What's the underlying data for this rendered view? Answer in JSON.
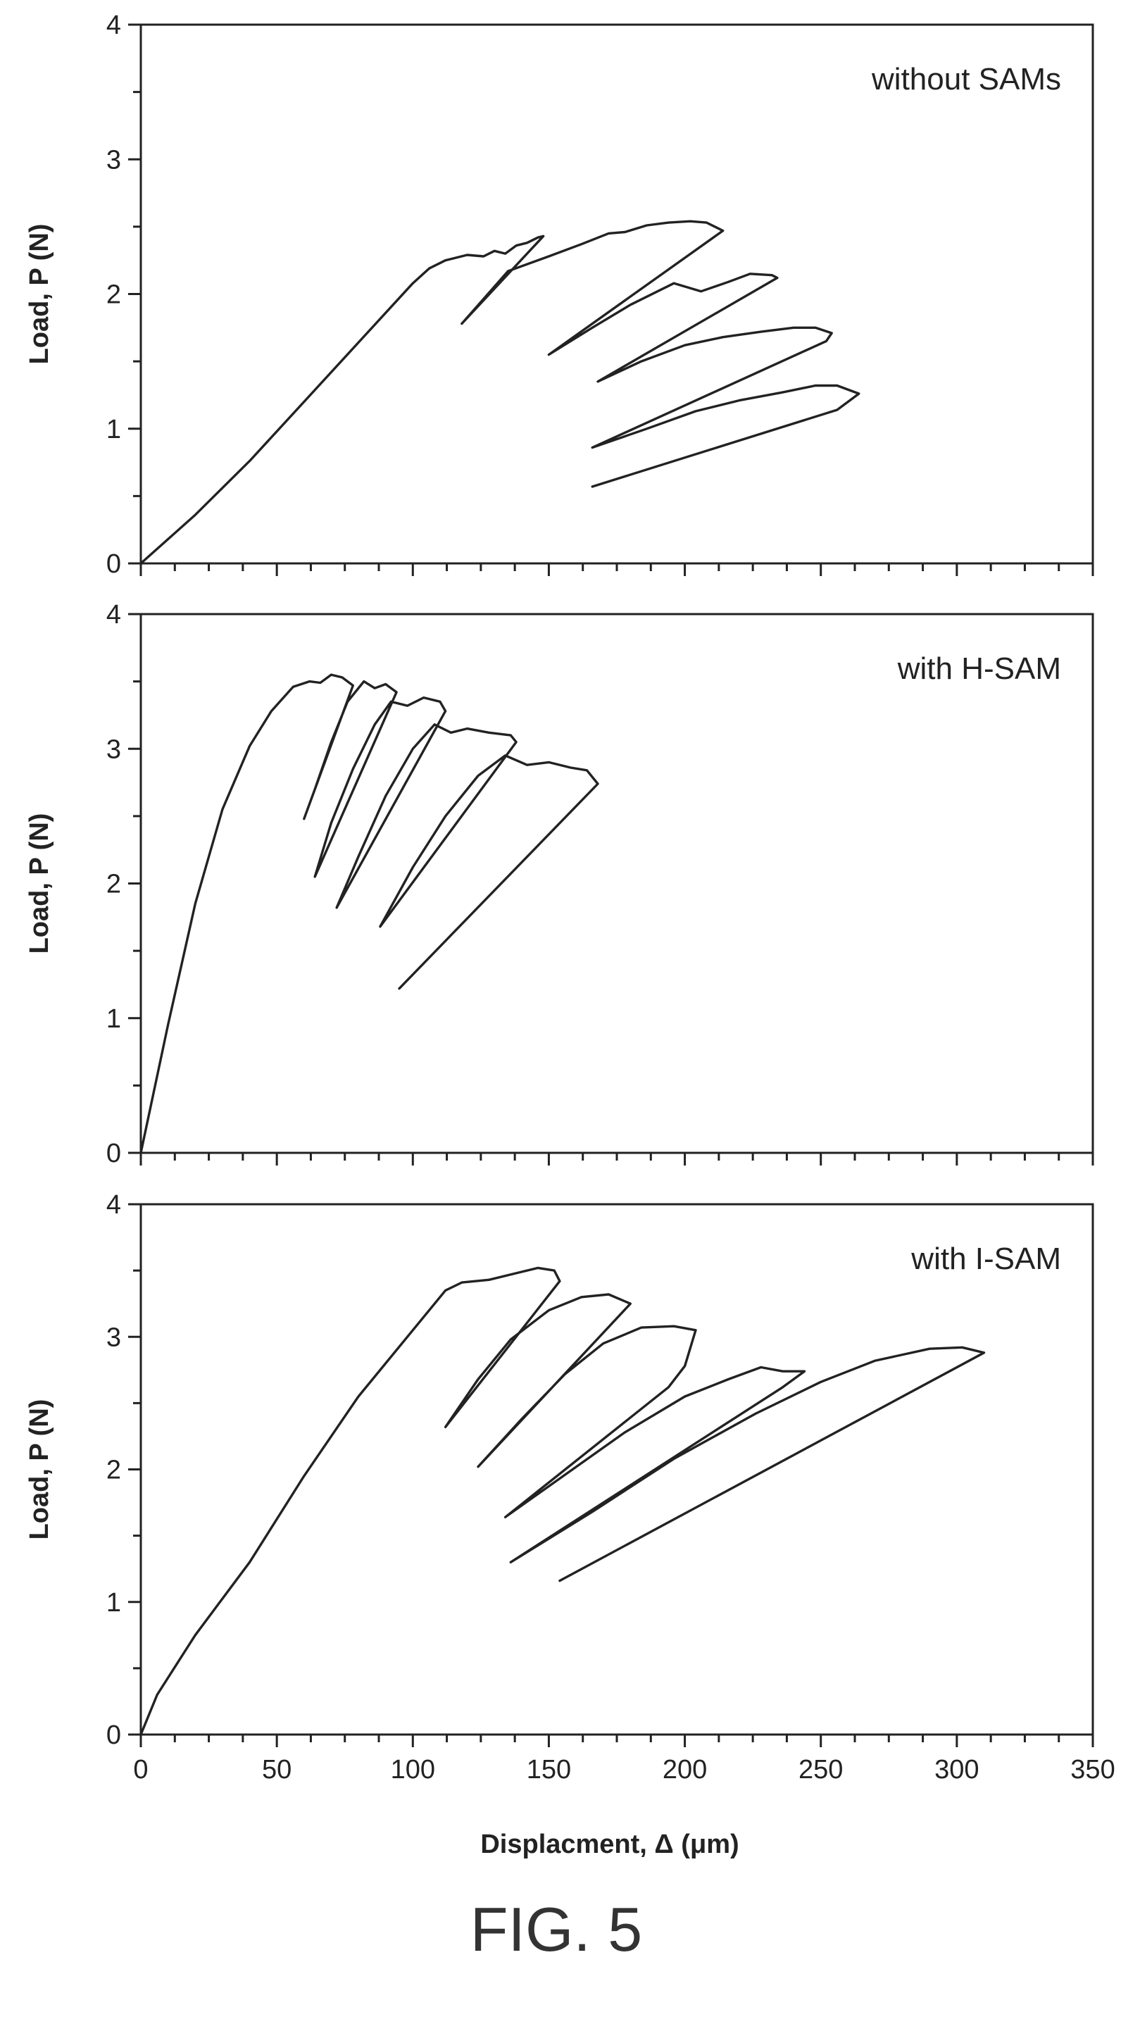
{
  "figure_caption": "FIG. 5",
  "chart_data": [
    {
      "type": "line",
      "title": "",
      "annotation": "without SAMs",
      "xlabel": "",
      "ylabel": "Load, P (N)",
      "xlim": [
        0,
        350
      ],
      "ylim": [
        0,
        4
      ],
      "xticks": [
        0,
        50,
        100,
        150,
        200,
        250,
        300,
        350
      ],
      "yticks": [
        0,
        1,
        2,
        3,
        4
      ],
      "xtick_labels": [],
      "ytick_labels": [
        "0",
        "1",
        "2",
        "3",
        "4"
      ],
      "x_minor_step": 12.5,
      "y_minor_step": 0.5,
      "series": [
        {
          "values": [
            [
              0,
              0
            ],
            [
              20,
              0.36
            ],
            [
              40,
              0.76
            ],
            [
              60,
              1.2
            ],
            [
              80,
              1.64
            ],
            [
              100,
              2.08
            ],
            [
              106,
              2.19
            ],
            [
              112,
              2.25
            ],
            [
              120,
              2.29
            ],
            [
              126,
              2.28
            ],
            [
              130,
              2.32
            ],
            [
              134,
              2.3
            ],
            [
              138,
              2.36
            ],
            [
              142,
              2.38
            ],
            [
              146,
              2.42
            ],
            [
              148,
              2.43
            ],
            [
              118,
              1.78
            ],
            [
              135,
              2.17
            ],
            [
              150,
              2.28
            ],
            [
              162,
              2.37
            ],
            [
              172,
              2.45
            ],
            [
              178,
              2.46
            ],
            [
              186,
              2.51
            ],
            [
              194,
              2.53
            ],
            [
              202,
              2.54
            ],
            [
              208,
              2.53
            ],
            [
              214,
              2.47
            ],
            [
              150,
              1.55
            ],
            [
              166,
              1.75
            ],
            [
              180,
              1.92
            ],
            [
              196,
              2.08
            ],
            [
              206,
              2.02
            ],
            [
              216,
              2.09
            ],
            [
              224,
              2.15
            ],
            [
              232,
              2.14
            ],
            [
              234,
              2.12
            ],
            [
              168,
              1.35
            ],
            [
              184,
              1.5
            ],
            [
              200,
              1.62
            ],
            [
              214,
              1.68
            ],
            [
              228,
              1.72
            ],
            [
              240,
              1.75
            ],
            [
              248,
              1.75
            ],
            [
              254,
              1.71
            ],
            [
              252,
              1.65
            ],
            [
              166,
              0.86
            ],
            [
              186,
              1.0
            ],
            [
              204,
              1.13
            ],
            [
              220,
              1.21
            ],
            [
              236,
              1.27
            ],
            [
              248,
              1.32
            ],
            [
              256,
              1.32
            ],
            [
              264,
              1.26
            ],
            [
              256,
              1.14
            ],
            [
              166,
              0.57
            ]
          ]
        }
      ]
    },
    {
      "type": "line",
      "title": "",
      "annotation": "with H-SAM",
      "xlabel": "",
      "ylabel": "Load, P (N)",
      "xlim": [
        0,
        350
      ],
      "ylim": [
        0,
        4
      ],
      "xticks": [
        0,
        50,
        100,
        150,
        200,
        250,
        300,
        350
      ],
      "yticks": [
        0,
        1,
        2,
        3,
        4
      ],
      "xtick_labels": [],
      "ytick_labels": [
        "0",
        "1",
        "2",
        "3",
        "4"
      ],
      "x_minor_step": 12.5,
      "y_minor_step": 0.5,
      "series": [
        {
          "values": [
            [
              0,
              0
            ],
            [
              10,
              0.95
            ],
            [
              20,
              1.85
            ],
            [
              30,
              2.55
            ],
            [
              40,
              3.02
            ],
            [
              48,
              3.28
            ],
            [
              56,
              3.46
            ],
            [
              62,
              3.5
            ],
            [
              66,
              3.49
            ],
            [
              70,
              3.55
            ],
            [
              74,
              3.53
            ],
            [
              78,
              3.47
            ],
            [
              60,
              2.48
            ],
            [
              64,
              2.7
            ],
            [
              70,
              3.05
            ],
            [
              76,
              3.35
            ],
            [
              82,
              3.5
            ],
            [
              86,
              3.45
            ],
            [
              90,
              3.48
            ],
            [
              94,
              3.42
            ],
            [
              64,
              2.05
            ],
            [
              70,
              2.45
            ],
            [
              78,
              2.85
            ],
            [
              86,
              3.18
            ],
            [
              92,
              3.35
            ],
            [
              98,
              3.32
            ],
            [
              104,
              3.38
            ],
            [
              110,
              3.35
            ],
            [
              112,
              3.28
            ],
            [
              72,
              1.82
            ],
            [
              80,
              2.2
            ],
            [
              90,
              2.65
            ],
            [
              100,
              3.0
            ],
            [
              108,
              3.18
            ],
            [
              114,
              3.12
            ],
            [
              120,
              3.15
            ],
            [
              128,
              3.12
            ],
            [
              136,
              3.1
            ],
            [
              138,
              3.05
            ],
            [
              88,
              1.68
            ],
            [
              100,
              2.12
            ],
            [
              112,
              2.5
            ],
            [
              124,
              2.8
            ],
            [
              134,
              2.95
            ],
            [
              142,
              2.88
            ],
            [
              150,
              2.9
            ],
            [
              158,
              2.86
            ],
            [
              164,
              2.84
            ],
            [
              168,
              2.74
            ],
            [
              95,
              1.22
            ]
          ]
        }
      ]
    },
    {
      "type": "line",
      "title": "",
      "annotation": "with I-SAM",
      "xlabel": "Displacment, Δ (μm)",
      "ylabel": "Load, P (N)",
      "xlim": [
        0,
        350
      ],
      "ylim": [
        0,
        4
      ],
      "xticks": [
        0,
        50,
        100,
        150,
        200,
        250,
        300,
        350
      ],
      "yticks": [
        0,
        1,
        2,
        3,
        4
      ],
      "xtick_labels": [
        "0",
        "50",
        "100",
        "150",
        "200",
        "250",
        "300",
        "350"
      ],
      "ytick_labels": [
        "0",
        "1",
        "2",
        "3",
        "4"
      ],
      "x_minor_step": 12.5,
      "y_minor_step": 0.5,
      "series": [
        {
          "values": [
            [
              0,
              0
            ],
            [
              6,
              0.3
            ],
            [
              20,
              0.75
            ],
            [
              40,
              1.3
            ],
            [
              60,
              1.95
            ],
            [
              80,
              2.55
            ],
            [
              100,
              3.05
            ],
            [
              112,
              3.35
            ],
            [
              118,
              3.41
            ],
            [
              128,
              3.43
            ],
            [
              138,
              3.48
            ],
            [
              146,
              3.52
            ],
            [
              152,
              3.5
            ],
            [
              154,
              3.42
            ],
            [
              112,
              2.32
            ],
            [
              124,
              2.68
            ],
            [
              136,
              2.98
            ],
            [
              150,
              3.2
            ],
            [
              162,
              3.3
            ],
            [
              172,
              3.32
            ],
            [
              180,
              3.25
            ],
            [
              124,
              2.02
            ],
            [
              140,
              2.38
            ],
            [
              156,
              2.72
            ],
            [
              170,
              2.95
            ],
            [
              184,
              3.07
            ],
            [
              196,
              3.08
            ],
            [
              204,
              3.05
            ],
            [
              200,
              2.78
            ],
            [
              194,
              2.62
            ],
            [
              134,
              1.64
            ],
            [
              156,
              1.96
            ],
            [
              178,
              2.28
            ],
            [
              200,
              2.55
            ],
            [
              216,
              2.68
            ],
            [
              228,
              2.77
            ],
            [
              236,
              2.74
            ],
            [
              244,
              2.74
            ],
            [
              236,
              2.62
            ],
            [
              136,
              1.3
            ],
            [
              166,
              1.68
            ],
            [
              196,
              2.08
            ],
            [
              226,
              2.42
            ],
            [
              250,
              2.66
            ],
            [
              270,
              2.82
            ],
            [
              290,
              2.91
            ],
            [
              302,
              2.92
            ],
            [
              310,
              2.88
            ],
            [
              154,
              1.16
            ]
          ]
        }
      ]
    }
  ]
}
